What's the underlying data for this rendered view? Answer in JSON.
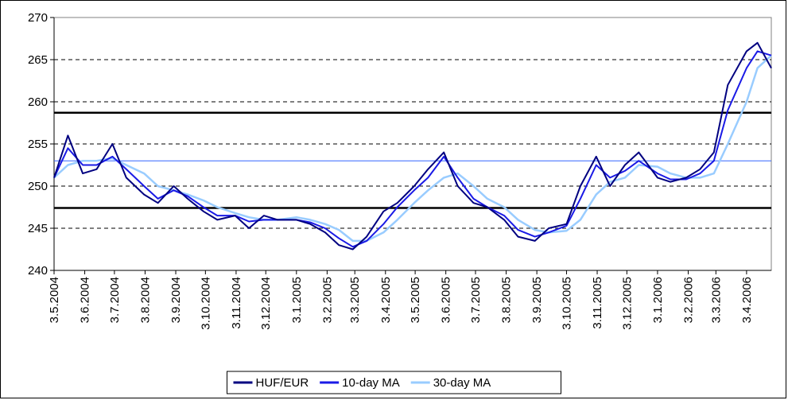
{
  "chart_data": {
    "type": "line",
    "x": [
      "2004-05-03",
      "2004-05-17",
      "2004-06-01",
      "2004-06-15",
      "2004-07-01",
      "2004-07-15",
      "2004-08-02",
      "2004-08-16",
      "2004-09-01",
      "2004-09-15",
      "2004-10-01",
      "2004-10-15",
      "2004-11-02",
      "2004-11-16",
      "2004-12-01",
      "2004-12-15",
      "2005-01-03",
      "2005-01-17",
      "2005-02-01",
      "2005-02-15",
      "2005-03-01",
      "2005-03-15",
      "2005-04-01",
      "2005-04-15",
      "2005-05-02",
      "2005-05-16",
      "2005-06-01",
      "2005-06-15",
      "2005-07-01",
      "2005-07-15",
      "2005-08-01",
      "2005-08-15",
      "2005-09-01",
      "2005-09-15",
      "2005-10-03",
      "2005-10-17",
      "2005-11-02",
      "2005-11-16",
      "2005-12-01",
      "2005-12-15",
      "2006-01-03",
      "2006-01-16",
      "2006-02-01",
      "2006-02-15",
      "2006-03-01",
      "2006-03-15",
      "2006-04-03",
      "2006-04-14",
      "2006-04-28"
    ],
    "series": [
      {
        "name": "HUF/EUR",
        "color": "#000080",
        "width": 2,
        "values": [
          251,
          256,
          251.5,
          252,
          255,
          251,
          249,
          248,
          250,
          248.5,
          247,
          246,
          246.5,
          245,
          246.5,
          246,
          246,
          245.5,
          244.5,
          243,
          242.5,
          244,
          247,
          248,
          250,
          252,
          254,
          250,
          248,
          247.5,
          246,
          244,
          243.5,
          245,
          245.5,
          250,
          253.5,
          250,
          252.5,
          254,
          251,
          250.5,
          251,
          252,
          254,
          262,
          266,
          267,
          264
        ]
      },
      {
        "name": "10-day MA",
        "color": "#1a1ae6",
        "width": 2,
        "values": [
          251,
          254.5,
          252.5,
          252.5,
          253.5,
          252,
          250,
          248.5,
          249.5,
          248.8,
          247.5,
          246.5,
          246.5,
          245.8,
          246,
          246,
          246,
          245.7,
          245,
          243.8,
          242.8,
          243.5,
          245.5,
          247.5,
          249.5,
          251,
          253.5,
          251,
          248.5,
          247.5,
          246.5,
          244.8,
          244,
          244.5,
          245.3,
          248.5,
          252.5,
          251,
          251.8,
          253,
          251.5,
          250.8,
          250.8,
          251.5,
          253,
          259,
          264,
          266,
          265.5
        ]
      },
      {
        "name": "30-day MA",
        "color": "#99ccff",
        "width": 2.5,
        "values": [
          251,
          252.5,
          253,
          253,
          253.3,
          252.5,
          251.5,
          250,
          249.5,
          249,
          248.3,
          247.5,
          246.8,
          246.3,
          246,
          246,
          246.3,
          246,
          245.5,
          244.8,
          243.5,
          243.5,
          244.5,
          246,
          248,
          249.5,
          251,
          251.5,
          250,
          248.5,
          247.5,
          246,
          244.8,
          244.5,
          244.7,
          246,
          249,
          250.5,
          251,
          252.5,
          252.3,
          251.5,
          251,
          251,
          251.5,
          255,
          260,
          264,
          265.5
        ]
      }
    ],
    "reference_lines": [
      {
        "value": 258.7,
        "color": "#000000",
        "width": 2.5
      },
      {
        "value": 253,
        "color": "#3366ff",
        "width": 1
      },
      {
        "value": 247.4,
        "color": "#000000",
        "width": 2.5
      }
    ],
    "xlim": [
      "2004-05-03",
      "2006-04-28"
    ],
    "xticks": [
      {
        "value": "2004-05-03",
        "label": "3.5.2004"
      },
      {
        "value": "2004-06-03",
        "label": "3.6.2004"
      },
      {
        "value": "2004-07-03",
        "label": "3.7.2004"
      },
      {
        "value": "2004-08-03",
        "label": "3.8.2004"
      },
      {
        "value": "2004-09-03",
        "label": "3.9.2004"
      },
      {
        "value": "2004-10-03",
        "label": "3.10.2004"
      },
      {
        "value": "2004-11-03",
        "label": "3.11.2004"
      },
      {
        "value": "2004-12-03",
        "label": "3.12.2004"
      },
      {
        "value": "2005-01-03",
        "label": "3.1.2005"
      },
      {
        "value": "2005-02-03",
        "label": "3.2.2005"
      },
      {
        "value": "2005-03-03",
        "label": "3.3.2005"
      },
      {
        "value": "2005-04-03",
        "label": "3.4.2005"
      },
      {
        "value": "2005-05-03",
        "label": "3.5.2005"
      },
      {
        "value": "2005-06-03",
        "label": "3.6.2005"
      },
      {
        "value": "2005-07-03",
        "label": "3.7.2005"
      },
      {
        "value": "2005-08-03",
        "label": "3.8.2005"
      },
      {
        "value": "2005-09-03",
        "label": "3.9.2005"
      },
      {
        "value": "2005-10-03",
        "label": "3.10.2005"
      },
      {
        "value": "2005-11-03",
        "label": "3.11.2005"
      },
      {
        "value": "2005-12-03",
        "label": "3.12.2005"
      },
      {
        "value": "2006-01-03",
        "label": "3.1.2006"
      },
      {
        "value": "2006-02-03",
        "label": "3.2.2006"
      },
      {
        "value": "2006-03-03",
        "label": "3.3.2006"
      },
      {
        "value": "2006-04-03",
        "label": "3.4.2006"
      }
    ],
    "ylim": [
      240,
      270
    ],
    "yticks": [
      240,
      245,
      250,
      255,
      260,
      265,
      270
    ],
    "grid": true,
    "legend": "bottom"
  }
}
